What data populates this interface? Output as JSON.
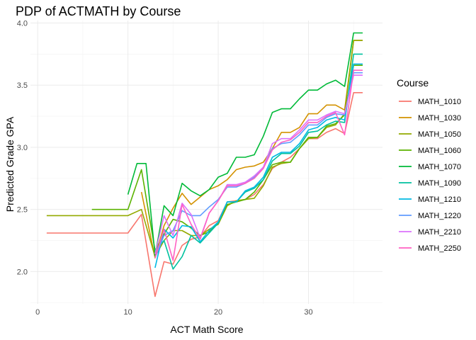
{
  "chart_data": {
    "type": "line",
    "title": "PDP of ACTMATH by Course",
    "xlabel": "ACT Math Score",
    "ylabel": "Predicted Grade GPA",
    "xlim": [
      -0.8,
      38.2
    ],
    "ylim": [
      1.74,
      4.02
    ],
    "x_ticks": [
      0,
      10,
      20,
      30
    ],
    "y_ticks": [
      2.0,
      2.5,
      3.0,
      3.5,
      4.0
    ],
    "y_tick_labels": [
      "2.0",
      "2.5",
      "3.0",
      "3.5",
      "4.0"
    ],
    "grid": true,
    "legend": {
      "title": "Course",
      "position": "right"
    },
    "series": [
      {
        "name": "MATH_1010",
        "color": "#F8766D",
        "points": [
          [
            1,
            2.31
          ],
          [
            2,
            2.31
          ],
          [
            4,
            2.31
          ],
          [
            6,
            2.31
          ],
          [
            8,
            2.31
          ],
          [
            10,
            2.31
          ],
          [
            11.5,
            2.46
          ],
          [
            13,
            1.8
          ],
          [
            14,
            2.08
          ],
          [
            15,
            2.06
          ],
          [
            16,
            2.21
          ],
          [
            17,
            2.26
          ],
          [
            18,
            2.28
          ],
          [
            19,
            2.37
          ],
          [
            20,
            2.41
          ],
          [
            21,
            2.56
          ],
          [
            22,
            2.57
          ],
          [
            23,
            2.58
          ],
          [
            24,
            2.62
          ],
          [
            25,
            2.7
          ],
          [
            26,
            2.83
          ],
          [
            27,
            2.88
          ],
          [
            28,
            2.92
          ],
          [
            29,
            2.99
          ],
          [
            30,
            3.07
          ],
          [
            31,
            3.07
          ],
          [
            32,
            3.12
          ],
          [
            33,
            3.15
          ],
          [
            34,
            3.11
          ],
          [
            35,
            3.44
          ],
          [
            36,
            3.44
          ]
        ]
      },
      {
        "name": "MATH_1030",
        "color": "#D39200",
        "points": [
          [
            11.5,
            2.64
          ],
          [
            13,
            2.11
          ],
          [
            14,
            2.37
          ],
          [
            15,
            2.51
          ],
          [
            16,
            2.63
          ],
          [
            17,
            2.54
          ],
          [
            18,
            2.6
          ],
          [
            19,
            2.66
          ],
          [
            20,
            2.69
          ],
          [
            21,
            2.74
          ],
          [
            22,
            2.82
          ],
          [
            23,
            2.84
          ],
          [
            24,
            2.85
          ],
          [
            25,
            2.88
          ],
          [
            26,
            2.99
          ],
          [
            27,
            3.12
          ],
          [
            28,
            3.12
          ],
          [
            29,
            3.16
          ],
          [
            30,
            3.27
          ],
          [
            31,
            3.27
          ],
          [
            32,
            3.34
          ],
          [
            33,
            3.34
          ],
          [
            34,
            3.3
          ],
          [
            35,
            3.86
          ],
          [
            36,
            3.86
          ]
        ]
      },
      {
        "name": "MATH_1050",
        "color": "#93AA00",
        "points": [
          [
            1,
            2.45
          ],
          [
            2,
            2.45
          ],
          [
            4,
            2.45
          ],
          [
            6,
            2.45
          ],
          [
            8,
            2.45
          ],
          [
            10,
            2.45
          ],
          [
            11.5,
            2.5
          ],
          [
            13,
            2.12
          ],
          [
            14,
            2.25
          ],
          [
            15,
            2.33
          ],
          [
            16,
            2.33
          ],
          [
            17,
            2.29
          ],
          [
            18,
            2.29
          ],
          [
            19,
            2.34
          ],
          [
            20,
            2.38
          ],
          [
            21,
            2.53
          ],
          [
            22,
            2.57
          ],
          [
            23,
            2.58
          ],
          [
            24,
            2.59
          ],
          [
            25,
            2.69
          ],
          [
            26,
            2.84
          ],
          [
            27,
            2.87
          ],
          [
            28,
            2.88
          ],
          [
            29,
            2.99
          ],
          [
            30,
            3.07
          ],
          [
            31,
            3.08
          ],
          [
            32,
            3.16
          ],
          [
            33,
            3.18
          ],
          [
            34,
            3.27
          ],
          [
            35,
            3.86
          ],
          [
            36,
            3.86
          ]
        ]
      },
      {
        "name": "MATH_1060",
        "color": "#5BB300",
        "points": [
          [
            6,
            2.5
          ],
          [
            8,
            2.5
          ],
          [
            10,
            2.5
          ],
          [
            11.5,
            2.82
          ],
          [
            13,
            2.17
          ],
          [
            14,
            2.3
          ],
          [
            15,
            2.42
          ],
          [
            16,
            2.4
          ],
          [
            17,
            2.35
          ],
          [
            18,
            2.29
          ],
          [
            19,
            2.32
          ],
          [
            20,
            2.39
          ],
          [
            21,
            2.54
          ],
          [
            22,
            2.56
          ],
          [
            23,
            2.58
          ],
          [
            24,
            2.64
          ],
          [
            25,
            2.74
          ],
          [
            26,
            2.86
          ],
          [
            27,
            2.88
          ],
          [
            28,
            2.88
          ],
          [
            29,
            2.99
          ],
          [
            30,
            3.08
          ],
          [
            31,
            3.08
          ],
          [
            32,
            3.17
          ],
          [
            33,
            3.19
          ],
          [
            34,
            3.26
          ],
          [
            35,
            3.66
          ],
          [
            36,
            3.66
          ]
        ]
      },
      {
        "name": "MATH_1070",
        "color": "#00BA38",
        "points": [
          [
            10,
            2.62
          ],
          [
            11,
            2.87
          ],
          [
            12,
            2.87
          ],
          [
            13,
            2.13
          ],
          [
            14,
            2.53
          ],
          [
            15,
            2.45
          ],
          [
            16,
            2.71
          ],
          [
            17,
            2.65
          ],
          [
            18,
            2.61
          ],
          [
            19,
            2.66
          ],
          [
            20,
            2.76
          ],
          [
            21,
            2.79
          ],
          [
            22,
            2.92
          ],
          [
            23,
            2.92
          ],
          [
            24,
            2.94
          ],
          [
            25,
            3.09
          ],
          [
            26,
            3.28
          ],
          [
            27,
            3.31
          ],
          [
            28,
            3.31
          ],
          [
            29,
            3.39
          ],
          [
            30,
            3.46
          ],
          [
            31,
            3.46
          ],
          [
            32,
            3.51
          ],
          [
            33,
            3.54
          ],
          [
            34,
            3.49
          ],
          [
            35,
            3.92
          ],
          [
            36,
            3.92
          ]
        ]
      },
      {
        "name": "MATH_1090",
        "color": "#00C19F",
        "points": [
          [
            13,
            2.17
          ],
          [
            14,
            2.25
          ],
          [
            15,
            2.02
          ],
          [
            16,
            2.12
          ],
          [
            17,
            2.29
          ],
          [
            18,
            2.23
          ],
          [
            19,
            2.31
          ],
          [
            20,
            2.39
          ],
          [
            21,
            2.56
          ],
          [
            22,
            2.56
          ],
          [
            23,
            2.64
          ],
          [
            24,
            2.67
          ],
          [
            25,
            2.74
          ],
          [
            26,
            2.89
          ],
          [
            27,
            2.95
          ],
          [
            28,
            2.95
          ],
          [
            29,
            3.01
          ],
          [
            30,
            3.12
          ],
          [
            31,
            3.13
          ],
          [
            32,
            3.18
          ],
          [
            33,
            3.21
          ],
          [
            34,
            3.2
          ],
          [
            35,
            3.75
          ],
          [
            36,
            3.75
          ]
        ]
      },
      {
        "name": "MATH_1210",
        "color": "#00B9E3",
        "points": [
          [
            13,
            2.03
          ],
          [
            14,
            2.34
          ],
          [
            15,
            2.27
          ],
          [
            16,
            2.37
          ],
          [
            17,
            2.36
          ],
          [
            18,
            2.24
          ],
          [
            19,
            2.33
          ],
          [
            20,
            2.4
          ],
          [
            21,
            2.56
          ],
          [
            22,
            2.56
          ],
          [
            23,
            2.65
          ],
          [
            24,
            2.68
          ],
          [
            25,
            2.76
          ],
          [
            26,
            2.92
          ],
          [
            27,
            2.96
          ],
          [
            28,
            2.96
          ],
          [
            29,
            3.03
          ],
          [
            30,
            3.14
          ],
          [
            31,
            3.16
          ],
          [
            32,
            3.22
          ],
          [
            33,
            3.24
          ],
          [
            34,
            3.22
          ],
          [
            35,
            3.67
          ],
          [
            36,
            3.67
          ]
        ]
      },
      {
        "name": "MATH_1220",
        "color": "#619CFF",
        "points": [
          [
            13,
            2.11
          ],
          [
            14,
            2.29
          ],
          [
            15,
            2.33
          ],
          [
            16,
            2.49
          ],
          [
            17,
            2.45
          ],
          [
            18,
            2.45
          ],
          [
            19,
            2.52
          ],
          [
            20,
            2.58
          ],
          [
            21,
            2.68
          ],
          [
            22,
            2.68
          ],
          [
            23,
            2.71
          ],
          [
            24,
            2.76
          ],
          [
            25,
            2.84
          ],
          [
            26,
            2.99
          ],
          [
            27,
            3.03
          ],
          [
            28,
            3.04
          ],
          [
            29,
            3.1
          ],
          [
            30,
            3.18
          ],
          [
            31,
            3.18
          ],
          [
            32,
            3.24
          ],
          [
            33,
            3.27
          ],
          [
            34,
            3.26
          ],
          [
            35,
            3.6
          ],
          [
            36,
            3.6
          ]
        ]
      },
      {
        "name": "MATH_2210",
        "color": "#DB72FB",
        "points": [
          [
            13,
            2.14
          ],
          [
            14,
            2.45
          ],
          [
            15,
            2.29
          ],
          [
            16,
            2.55
          ],
          [
            17,
            2.46
          ],
          [
            18,
            2.27
          ],
          [
            19,
            2.47
          ],
          [
            20,
            2.57
          ],
          [
            21,
            2.7
          ],
          [
            22,
            2.7
          ],
          [
            23,
            2.72
          ],
          [
            24,
            2.77
          ],
          [
            25,
            2.84
          ],
          [
            26,
            3.03
          ],
          [
            27,
            3.07
          ],
          [
            28,
            3.07
          ],
          [
            29,
            3.14
          ],
          [
            30,
            3.22
          ],
          [
            31,
            3.22
          ],
          [
            32,
            3.26
          ],
          [
            33,
            3.29
          ],
          [
            34,
            3.27
          ],
          [
            35,
            3.58
          ],
          [
            36,
            3.58
          ]
        ]
      },
      {
        "name": "MATH_2250",
        "color": "#FF61C3",
        "points": [
          [
            13,
            2.11
          ],
          [
            14,
            2.34
          ],
          [
            15,
            2.09
          ],
          [
            16,
            2.54
          ],
          [
            17,
            2.38
          ],
          [
            18,
            2.26
          ],
          [
            19,
            2.47
          ],
          [
            20,
            2.57
          ],
          [
            21,
            2.69
          ],
          [
            22,
            2.69
          ],
          [
            23,
            2.71
          ],
          [
            24,
            2.75
          ],
          [
            25,
            2.83
          ],
          [
            26,
            2.98
          ],
          [
            27,
            3.04
          ],
          [
            28,
            3.06
          ],
          [
            29,
            3.12
          ],
          [
            30,
            3.2
          ],
          [
            31,
            3.2
          ],
          [
            32,
            3.25
          ],
          [
            33,
            3.28
          ],
          [
            34,
            3.1
          ],
          [
            35,
            3.62
          ],
          [
            36,
            3.62
          ]
        ]
      }
    ]
  }
}
